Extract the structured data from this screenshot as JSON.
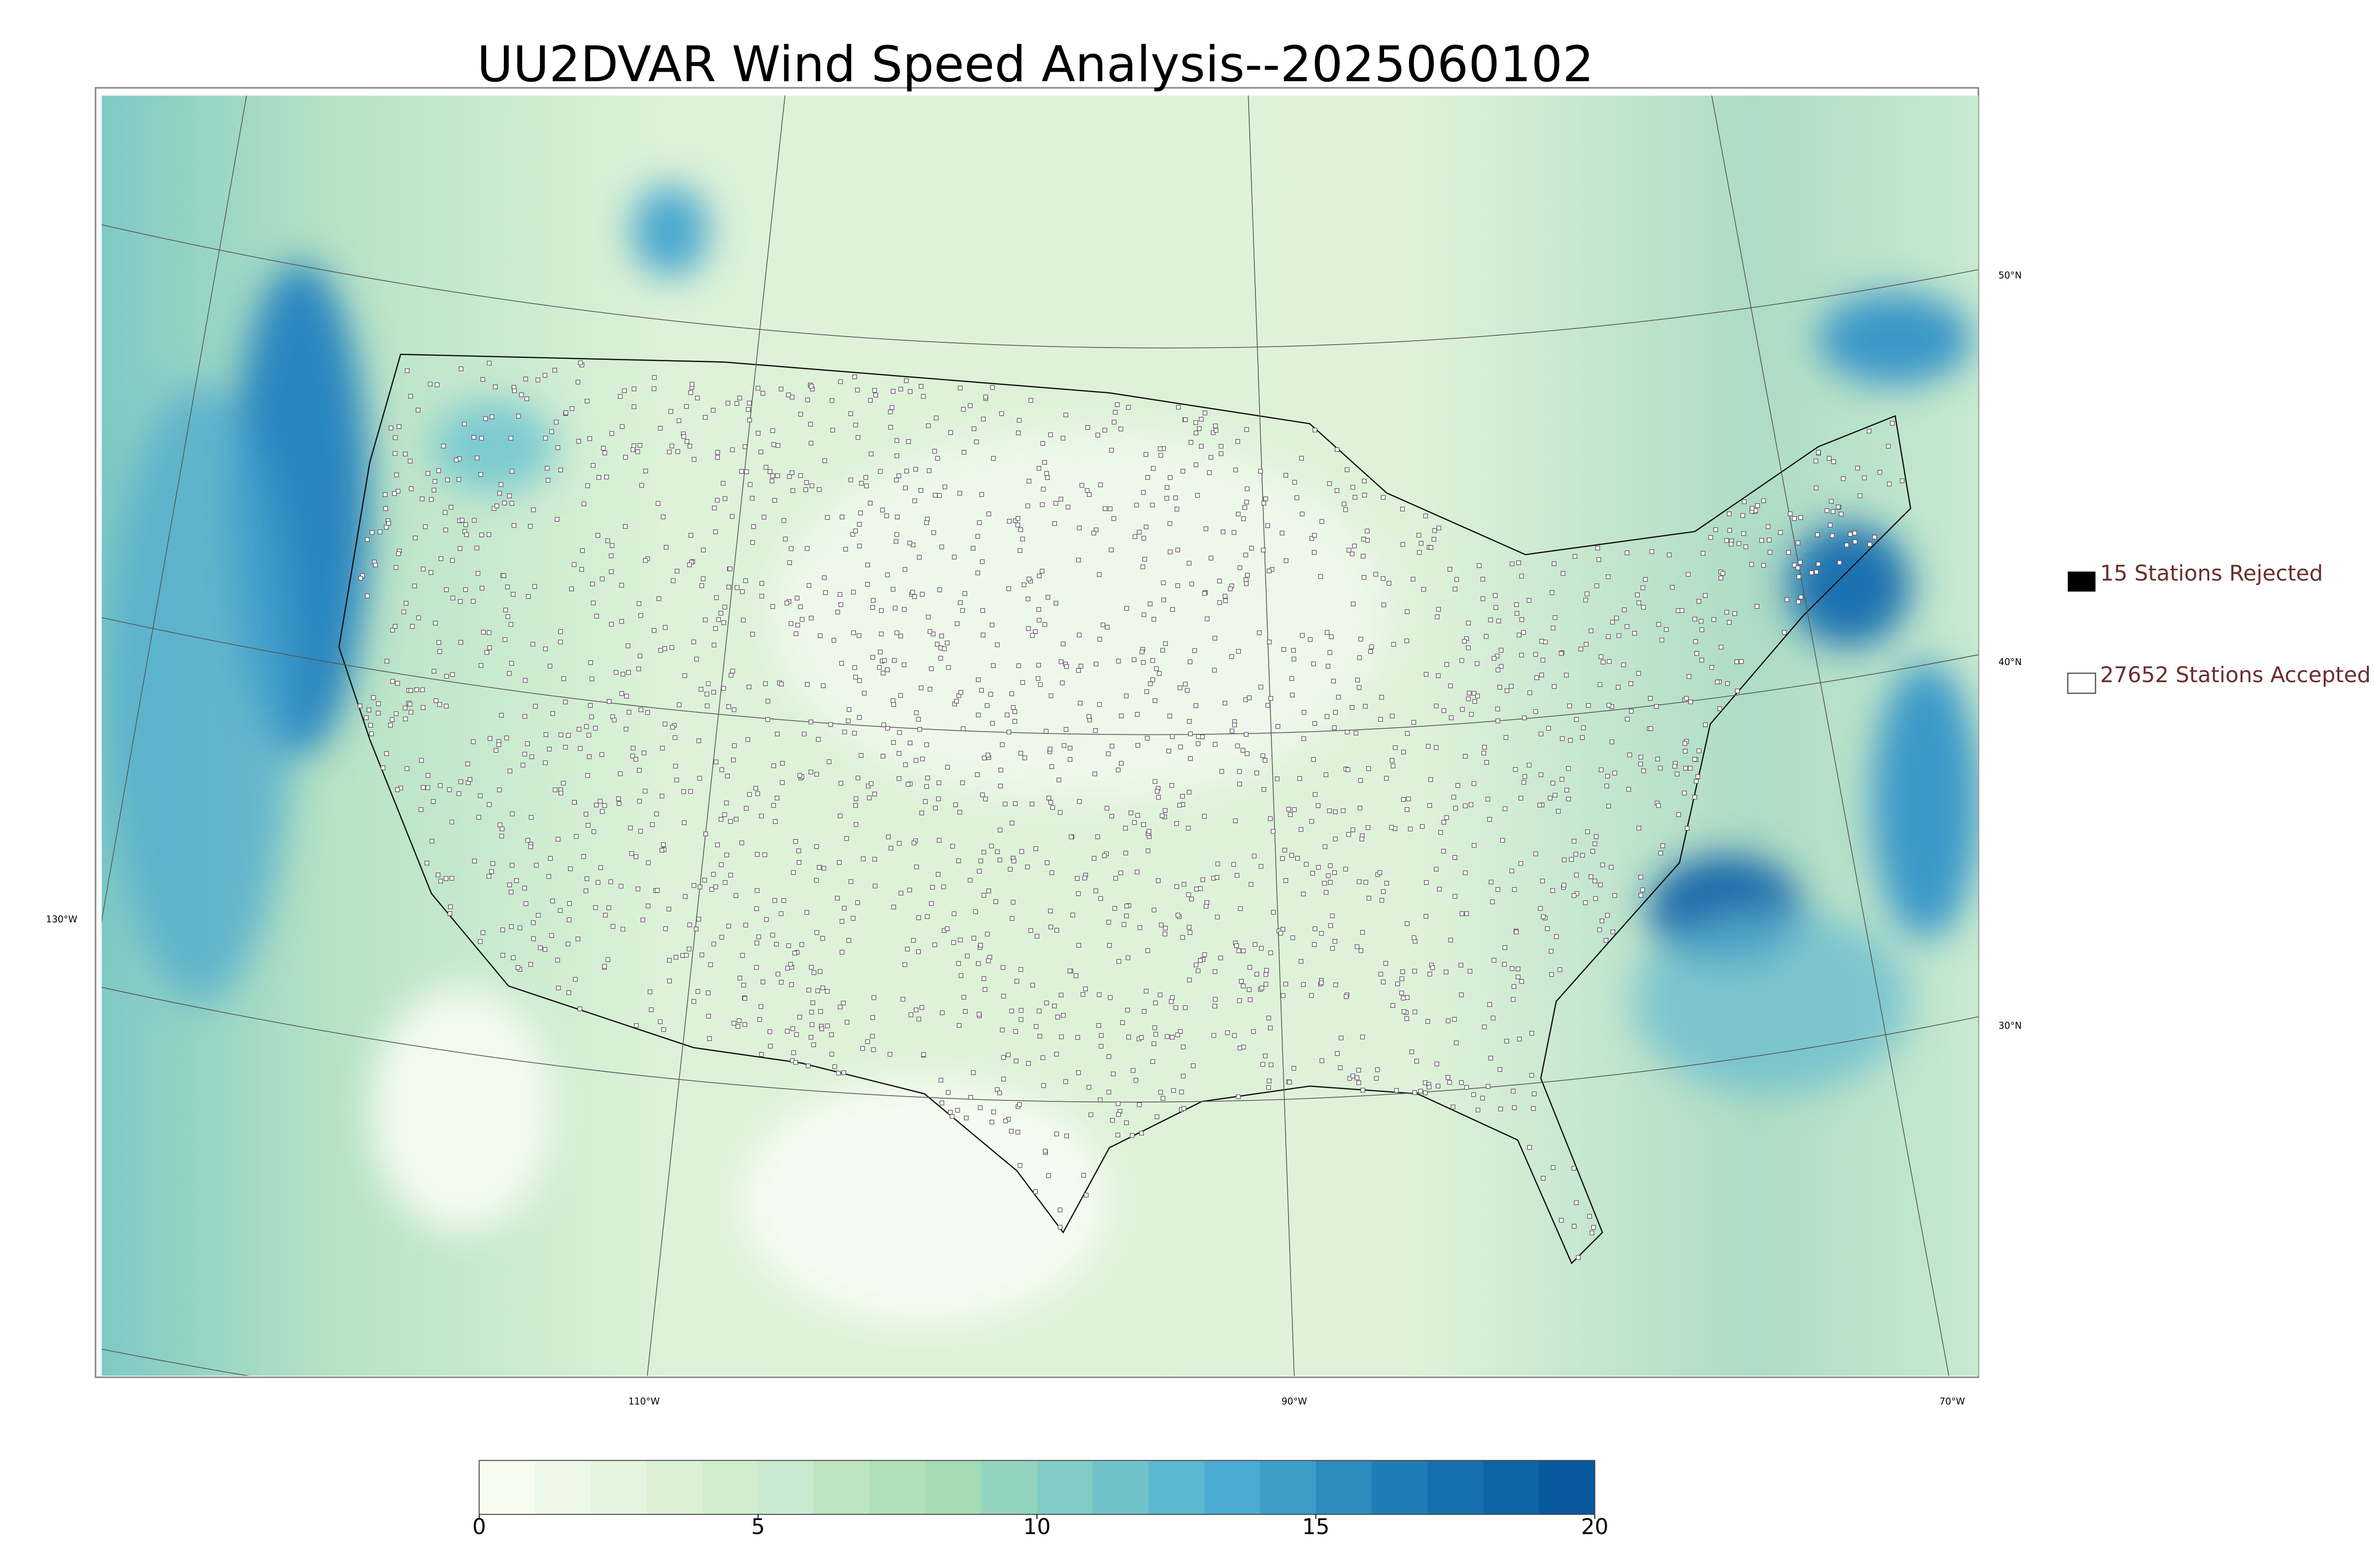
{
  "title": "UU2DVAR Wind Speed Analysis--2025060102",
  "legend": {
    "rejected": "15 Stations Rejected",
    "accepted": "27652 Stations Accepted"
  },
  "graticule": {
    "lat_labels": [
      "50°N",
      "40°N",
      "30°N"
    ],
    "lon_labels": [
      "130°W",
      "110°W",
      "90°W",
      "70°W"
    ]
  },
  "colorbar": {
    "lim": [
      0,
      20
    ],
    "ticks": [
      0,
      5,
      10,
      15,
      20
    ],
    "colors": [
      "#f7fcf0",
      "#eef8e9",
      "#e5f5e0",
      "#dcf1d6",
      "#d3eecd",
      "#c8ead1",
      "#bde5bf",
      "#b0e0b8",
      "#a3dbb7",
      "#93d4be",
      "#80ccc4",
      "#6fc2c9",
      "#5cb8d0",
      "#4bacd3",
      "#3c9dc9",
      "#2d8cbe",
      "#1f7db6",
      "#1770ae",
      "#0f64a6",
      "#08589e"
    ]
  }
}
